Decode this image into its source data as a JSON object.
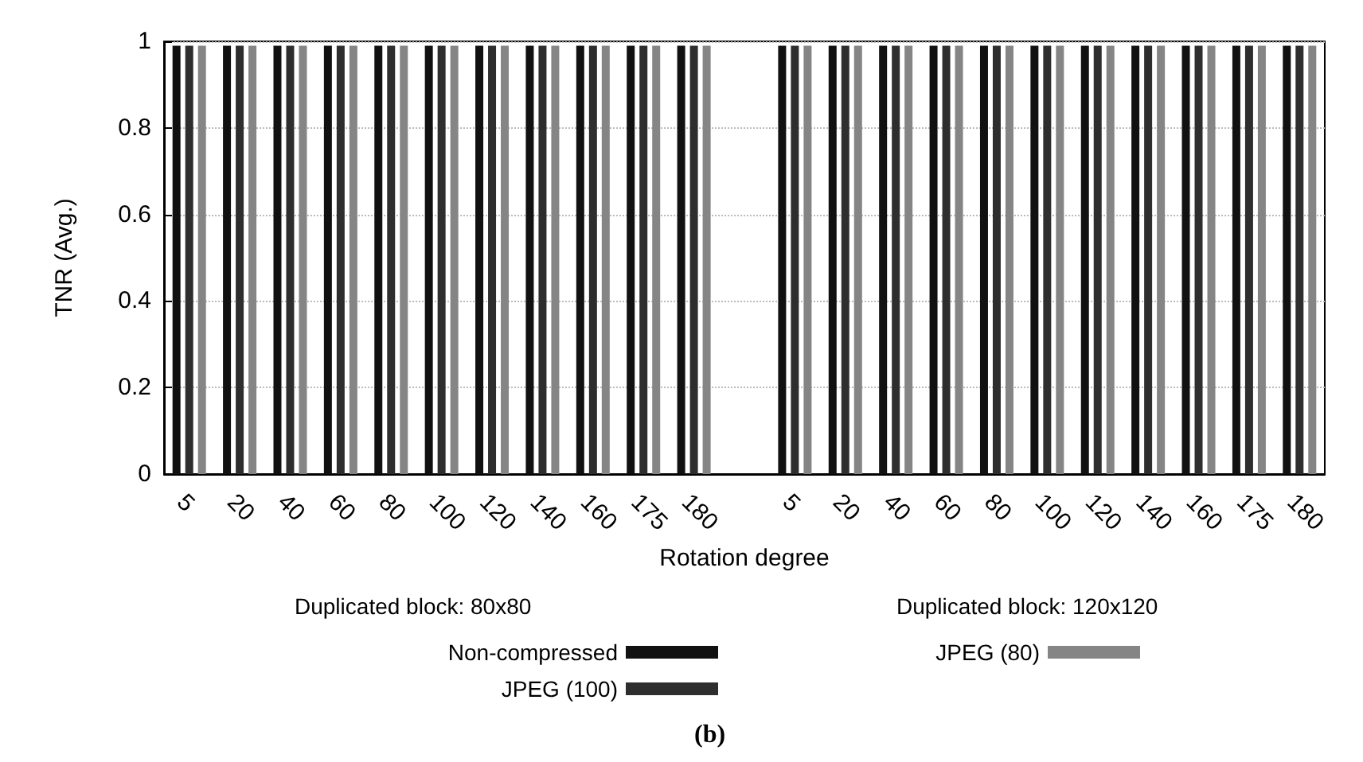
{
  "chart_data": {
    "type": "bar",
    "xlabel": "Rotation degree",
    "ylabel": "TNR (Avg.)",
    "categories": [
      "5",
      "20",
      "40",
      "60",
      "80",
      "100",
      "120",
      "140",
      "160",
      "175",
      "180",
      null,
      "5",
      "20",
      "40",
      "60",
      "80",
      "100",
      "120",
      "140",
      "160",
      "175",
      "180"
    ],
    "series": [
      {
        "name": "Non-compressed",
        "color": "#111111",
        "values": [
          0.99,
          0.99,
          0.99,
          0.99,
          0.99,
          0.99,
          0.99,
          0.99,
          0.99,
          0.99,
          0.99,
          null,
          0.99,
          0.99,
          0.99,
          0.99,
          0.99,
          0.99,
          0.99,
          0.99,
          0.99,
          0.99,
          0.99
        ]
      },
      {
        "name": "JPEG (100)",
        "color": "#2e2e2e",
        "values": [
          0.99,
          0.99,
          0.99,
          0.99,
          0.99,
          0.99,
          0.99,
          0.99,
          0.99,
          0.99,
          0.99,
          null,
          0.99,
          0.99,
          0.99,
          0.99,
          0.99,
          0.99,
          0.99,
          0.99,
          0.99,
          0.99,
          0.99
        ]
      },
      {
        "name": "JPEG (80)",
        "color": "#858585",
        "values": [
          0.99,
          0.99,
          0.99,
          0.99,
          0.99,
          0.99,
          0.99,
          0.99,
          0.99,
          0.99,
          0.99,
          null,
          0.99,
          0.99,
          0.99,
          0.99,
          0.99,
          0.99,
          0.99,
          0.99,
          0.99,
          0.99,
          0.99
        ]
      }
    ],
    "ylim": [
      0,
      1
    ],
    "yticks": [
      0,
      0.2,
      0.4,
      0.6,
      0.8,
      1
    ],
    "grid": "y",
    "legend": "bottom",
    "annotations": [
      "Duplicated block: 80x80",
      "Duplicated block: 120x120",
      "(b)"
    ]
  }
}
